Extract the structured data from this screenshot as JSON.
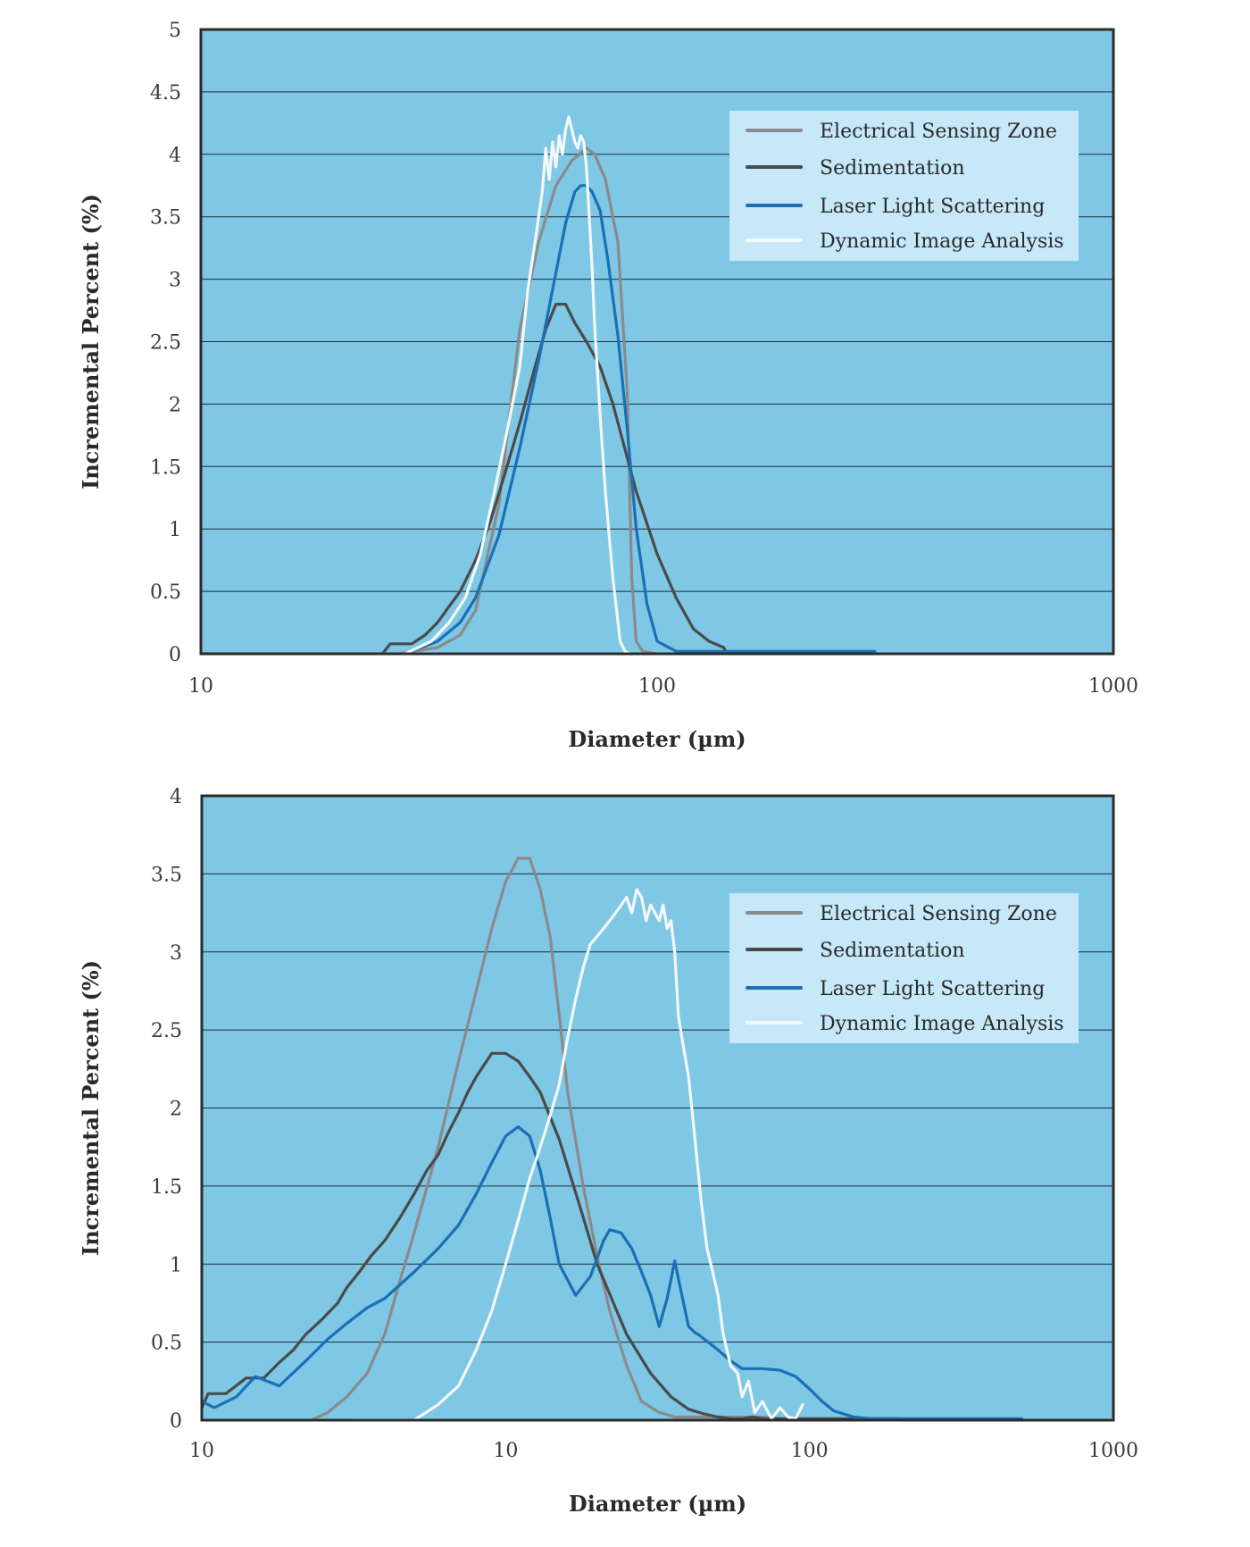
{
  "colors": {
    "plot_background": "#7ec8e6",
    "gridline": "#1f2a33",
    "frame": "#2b2b2b",
    "legend_background": "#c6e8f8",
    "Electrical Sensing Zone": "#8a8a8a",
    "Sedimentation": "#4a4a4a",
    "Laser Light Scattering": "#1a6fb5",
    "Dynamic Image Analysis": "#f4f8fa"
  },
  "chart_data": [
    {
      "type": "line",
      "xlabel": "Diameter (µm)",
      "ylabel": "Incremental Percent (%)",
      "xscale": "log",
      "xlim": [
        10,
        1000
      ],
      "ylim": [
        0,
        5
      ],
      "xticks": [
        "10",
        "100",
        "1000"
      ],
      "yticks": [
        "0",
        "0.5",
        "1",
        "1.5",
        "2",
        "2.5",
        "3",
        "3.5",
        "4",
        "4.5",
        "5"
      ],
      "grid": "horizontal",
      "legend_position": "top-right",
      "series": [
        {
          "name": "Electrical Sensing Zone",
          "x": [
            10,
            27,
            33,
            37,
            40,
            45,
            50,
            55,
            60,
            65,
            70,
            73,
            77,
            82,
            86,
            88,
            90,
            93,
            100
          ],
          "y": [
            0,
            0,
            0.05,
            0.15,
            0.35,
            1.2,
            2.6,
            3.3,
            3.75,
            3.95,
            4.05,
            4.0,
            3.8,
            3.3,
            2.1,
            0.6,
            0.1,
            0.02,
            0
          ]
        },
        {
          "name": "Sedimentation",
          "x": [
            10,
            25,
            26,
            29,
            31,
            33,
            35,
            37,
            40,
            43,
            46,
            50,
            54,
            57,
            60,
            63,
            66,
            70,
            75,
            80,
            90,
            100,
            110,
            120,
            130,
            140,
            142
          ],
          "y": [
            0,
            0,
            0.08,
            0.08,
            0.15,
            0.25,
            0.38,
            0.5,
            0.75,
            1.05,
            1.4,
            1.85,
            2.3,
            2.6,
            2.8,
            2.8,
            2.65,
            2.5,
            2.3,
            2.0,
            1.3,
            0.8,
            0.45,
            0.2,
            0.1,
            0.05,
            0
          ]
        },
        {
          "name": "Laser Light Scattering",
          "x": [
            10,
            28,
            33,
            37,
            40,
            45,
            50,
            55,
            60,
            63,
            66,
            68,
            70,
            72,
            75,
            78,
            82,
            86,
            90,
            95,
            100,
            110,
            130,
            170,
            300
          ],
          "y": [
            0,
            0,
            0.1,
            0.25,
            0.45,
            0.95,
            1.65,
            2.35,
            3.05,
            3.45,
            3.7,
            3.75,
            3.75,
            3.7,
            3.55,
            3.15,
            2.55,
            1.8,
            1.0,
            0.4,
            0.1,
            0.02,
            0.02,
            0.02,
            0.02
          ]
        },
        {
          "name": "Dynamic Image Analysis",
          "x": [
            10,
            28,
            32,
            35,
            38,
            41,
            44,
            47,
            50,
            52,
            54,
            56,
            57,
            58,
            59,
            60,
            61,
            62,
            63,
            64,
            65,
            66,
            67,
            68,
            69,
            70,
            71,
            72,
            73,
            75,
            77,
            80,
            83,
            85,
            87
          ],
          "y": [
            0,
            0,
            0.1,
            0.25,
            0.45,
            0.8,
            1.3,
            1.8,
            2.3,
            2.9,
            3.3,
            3.7,
            4.05,
            3.8,
            4.1,
            3.9,
            4.15,
            4.0,
            4.2,
            4.3,
            4.2,
            4.1,
            4.05,
            4.15,
            4.1,
            3.9,
            3.5,
            3.1,
            2.6,
            1.9,
            1.3,
            0.6,
            0.1,
            0.02,
            0
          ]
        }
      ]
    },
    {
      "type": "line",
      "xlabel": "Diameter (µm)",
      "ylabel": "Incremental Percent (%)",
      "xscale": "log",
      "xlim": [
        1,
        1000
      ],
      "ylim": [
        0,
        4
      ],
      "xticks": [
        "10",
        "10",
        "100",
        "1000"
      ],
      "yticks": [
        "0",
        "0.5",
        "1",
        "1.5",
        "2",
        "2.5",
        "3",
        "3.5",
        "4"
      ],
      "grid": "horizontal",
      "legend_position": "top-right",
      "series": [
        {
          "name": "Electrical Sensing Zone",
          "x": [
            2.3,
            2.6,
            3,
            3.5,
            4,
            4.5,
            5,
            6,
            7,
            8,
            9,
            10,
            11,
            12,
            13,
            14,
            15,
            16,
            18,
            20,
            22,
            25,
            28,
            32,
            36,
            40,
            45,
            50,
            60,
            70,
            80
          ],
          "y": [
            0,
            0.05,
            0.15,
            0.3,
            0.55,
            0.9,
            1.2,
            1.75,
            2.3,
            2.75,
            3.15,
            3.45,
            3.6,
            3.6,
            3.4,
            3.1,
            2.6,
            2.1,
            1.5,
            1.05,
            0.7,
            0.35,
            0.12,
            0.05,
            0.02,
            0.02,
            0.02,
            0.02,
            0.02,
            0.02,
            0.01
          ]
        },
        {
          "name": "Sedimentation",
          "x": [
            1,
            1.05,
            1.2,
            1.4,
            1.6,
            1.8,
            2,
            2.2,
            2.5,
            2.8,
            3,
            3.3,
            3.6,
            4,
            4.5,
            5,
            5.5,
            6,
            6.5,
            7,
            7.5,
            8,
            9,
            10,
            11,
            12,
            13,
            15,
            18,
            20,
            25,
            30,
            35,
            40,
            45,
            50,
            55,
            60,
            65,
            70,
            80,
            100,
            200
          ],
          "y": [
            0.08,
            0.17,
            0.17,
            0.27,
            0.27,
            0.37,
            0.45,
            0.55,
            0.65,
            0.75,
            0.85,
            0.95,
            1.05,
            1.15,
            1.3,
            1.45,
            1.6,
            1.7,
            1.85,
            1.97,
            2.1,
            2.2,
            2.35,
            2.35,
            2.3,
            2.2,
            2.1,
            1.8,
            1.3,
            1.0,
            0.55,
            0.3,
            0.15,
            0.07,
            0.04,
            0.02,
            0.01,
            0.01,
            0.02,
            0.01,
            0.01,
            0.01,
            0.01
          ]
        },
        {
          "name": "Laser Light Scattering",
          "x": [
            1,
            1.1,
            1.3,
            1.5,
            1.8,
            2.2,
            2.6,
            3,
            3.5,
            4,
            5,
            6,
            7,
            8,
            9,
            10,
            11,
            12,
            13,
            14,
            15,
            17,
            19,
            21,
            22,
            24,
            26,
            28,
            30,
            32,
            34,
            36,
            38,
            40,
            41,
            42,
            43,
            45,
            50,
            55,
            60,
            70,
            80,
            90,
            100,
            110,
            120,
            140,
            160,
            200,
            300,
            500
          ],
          "y": [
            0.12,
            0.08,
            0.15,
            0.28,
            0.22,
            0.38,
            0.52,
            0.62,
            0.72,
            0.78,
            0.95,
            1.1,
            1.25,
            1.45,
            1.65,
            1.82,
            1.88,
            1.82,
            1.6,
            1.3,
            1.0,
            0.8,
            0.92,
            1.15,
            1.22,
            1.2,
            1.1,
            0.95,
            0.8,
            0.6,
            0.78,
            1.02,
            0.8,
            0.6,
            0.58,
            0.56,
            0.55,
            0.52,
            0.45,
            0.38,
            0.33,
            0.33,
            0.32,
            0.28,
            0.2,
            0.12,
            0.06,
            0.02,
            0.01,
            0.01,
            0.01,
            0.01
          ]
        },
        {
          "name": "Dynamic Image Analysis",
          "x": [
            3,
            5,
            6,
            7,
            8,
            9,
            10,
            11,
            12,
            13,
            14,
            15,
            16,
            17,
            18,
            19,
            20,
            21,
            22,
            23,
            24,
            25,
            26,
            27,
            28,
            29,
            30,
            31,
            32,
            33,
            34,
            35,
            36,
            37,
            38,
            40,
            42,
            44,
            46,
            48,
            50,
            52,
            55,
            58,
            60,
            63,
            66,
            70,
            75,
            80,
            85,
            90,
            95
          ],
          "y": [
            0,
            0,
            0.1,
            0.22,
            0.45,
            0.7,
            1.0,
            1.28,
            1.55,
            1.75,
            1.95,
            2.15,
            2.45,
            2.7,
            2.9,
            3.05,
            3.1,
            3.15,
            3.2,
            3.25,
            3.3,
            3.35,
            3.25,
            3.4,
            3.35,
            3.2,
            3.3,
            3.25,
            3.2,
            3.3,
            3.15,
            3.2,
            3.0,
            2.6,
            2.45,
            2.2,
            1.8,
            1.4,
            1.1,
            0.95,
            0.8,
            0.55,
            0.35,
            0.3,
            0.15,
            0.25,
            0.05,
            0.12,
            0.01,
            0.08,
            0.02,
            0.01,
            0.1
          ]
        }
      ]
    }
  ]
}
